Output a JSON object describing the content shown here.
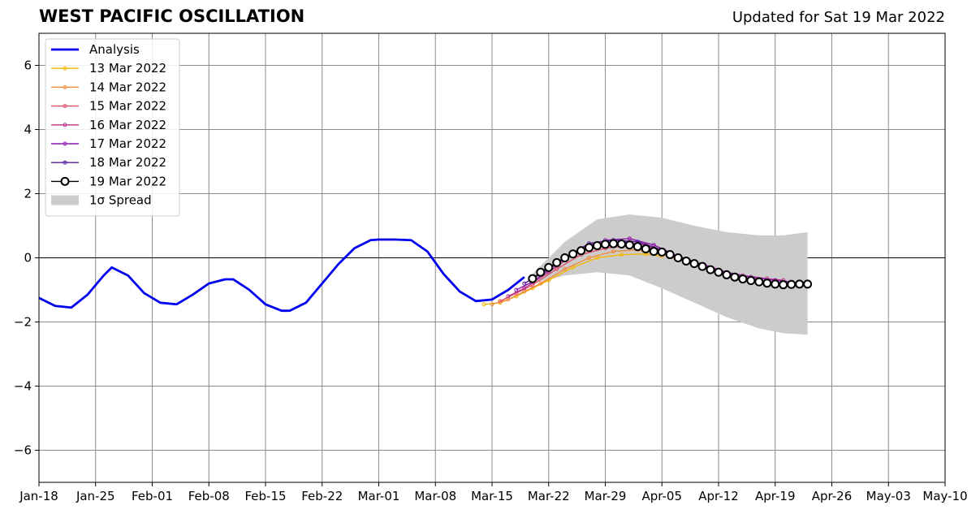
{
  "chart_data": {
    "type": "line",
    "title": "WEST PACIFIC OSCILLATION",
    "subtitle": "Updated for Sat 19 Mar 2022",
    "xlabel": "",
    "ylabel": "",
    "xlim": [
      "2022-01-18",
      "2022-05-10"
    ],
    "ylim": [
      -7,
      7
    ],
    "x_ticks": [
      "Jan-18",
      "Jan-25",
      "Feb-01",
      "Feb-08",
      "Feb-15",
      "Feb-22",
      "Mar-01",
      "Mar-08",
      "Mar-15",
      "Mar-22",
      "Mar-29",
      "Apr-05",
      "Apr-12",
      "Apr-19",
      "Apr-26",
      "May-03",
      "May-10"
    ],
    "y_ticks": [
      -6,
      -4,
      -2,
      0,
      2,
      4,
      6
    ],
    "y_tick_labels": [
      "−6",
      "−4",
      "−2",
      "0",
      "2",
      "4",
      "6"
    ],
    "grid": true,
    "legend_position": "top-left",
    "series": [
      {
        "name": "Analysis",
        "color": "#0000ee",
        "style": "line",
        "x": [
          "2022-01-18",
          "2022-01-20",
          "2022-01-22",
          "2022-01-24",
          "2022-01-26",
          "2022-01-27",
          "2022-01-29",
          "2022-01-31",
          "2022-02-02",
          "2022-02-04",
          "2022-02-06",
          "2022-02-08",
          "2022-02-10",
          "2022-02-11",
          "2022-02-13",
          "2022-02-15",
          "2022-02-17",
          "2022-02-18",
          "2022-02-20",
          "2022-02-22",
          "2022-02-24",
          "2022-02-26",
          "2022-02-28",
          "2022-03-01",
          "2022-03-03",
          "2022-03-05",
          "2022-03-07",
          "2022-03-09",
          "2022-03-11",
          "2022-03-13",
          "2022-03-15",
          "2022-03-17",
          "2022-03-19"
        ],
        "y": [
          -1.25,
          -1.5,
          -1.55,
          -1.15,
          -0.55,
          -0.3,
          -0.55,
          -1.1,
          -1.4,
          -1.45,
          -1.15,
          -0.8,
          -0.67,
          -0.67,
          -1.0,
          -1.45,
          -1.65,
          -1.65,
          -1.4,
          -0.8,
          -0.2,
          0.3,
          0.55,
          0.57,
          0.57,
          0.55,
          0.2,
          -0.5,
          -1.05,
          -1.35,
          -1.3,
          -1.0,
          -0.6
        ]
      },
      {
        "name": "13 Mar 2022",
        "color": "#f5b700",
        "style": "marker-line",
        "x": [
          "2022-03-14",
          "2022-03-16",
          "2022-03-18",
          "2022-03-20",
          "2022-03-22",
          "2022-03-25",
          "2022-03-28",
          "2022-03-31",
          "2022-04-03",
          "2022-04-05"
        ],
        "y": [
          -1.45,
          -1.4,
          -1.2,
          -0.95,
          -0.7,
          -0.3,
          0.0,
          0.1,
          0.12,
          0.05
        ]
      },
      {
        "name": "14 Mar 2022",
        "color": "#f08c3c",
        "style": "marker-line",
        "x": [
          "2022-03-15",
          "2022-03-17",
          "2022-03-19",
          "2022-03-21",
          "2022-03-24",
          "2022-03-27",
          "2022-03-30",
          "2022-04-02",
          "2022-04-05",
          "2022-04-07"
        ],
        "y": [
          -1.45,
          -1.3,
          -1.05,
          -0.8,
          -0.35,
          0.0,
          0.2,
          0.25,
          0.12,
          -0.05
        ]
      },
      {
        "name": "15 Mar 2022",
        "color": "#e0506a",
        "style": "marker-line",
        "x": [
          "2022-03-16",
          "2022-03-18",
          "2022-03-20",
          "2022-03-23",
          "2022-03-26",
          "2022-03-29",
          "2022-04-01",
          "2022-04-04",
          "2022-04-07",
          "2022-04-10",
          "2022-04-13",
          "2022-04-16",
          "2022-04-19"
        ],
        "y": [
          -1.35,
          -1.1,
          -0.85,
          -0.35,
          0.1,
          0.3,
          0.38,
          0.3,
          0.05,
          -0.2,
          -0.45,
          -0.6,
          -0.7
        ]
      },
      {
        "name": "16 Mar 2022",
        "color": "#b8348c",
        "style": "marker-line",
        "x": [
          "2022-03-17",
          "2022-03-19",
          "2022-03-22",
          "2022-03-25",
          "2022-03-28",
          "2022-03-31",
          "2022-04-03",
          "2022-04-06",
          "2022-04-09",
          "2022-04-12",
          "2022-04-15",
          "2022-04-18",
          "2022-04-20"
        ],
        "y": [
          -1.2,
          -0.95,
          -0.45,
          0.1,
          0.4,
          0.5,
          0.4,
          0.1,
          -0.15,
          -0.4,
          -0.55,
          -0.65,
          -0.7
        ]
      },
      {
        "name": "17 Mar 2022",
        "color": "#8c1aaa",
        "style": "marker-line",
        "x": [
          "2022-03-18",
          "2022-03-20",
          "2022-03-23",
          "2022-03-26",
          "2022-03-29",
          "2022-04-01",
          "2022-04-04",
          "2022-04-07",
          "2022-04-10",
          "2022-04-13",
          "2022-04-16",
          "2022-04-19",
          "2022-04-21"
        ],
        "y": [
          -1.0,
          -0.75,
          -0.2,
          0.3,
          0.55,
          0.6,
          0.4,
          0.05,
          -0.2,
          -0.45,
          -0.6,
          -0.7,
          -0.75
        ]
      },
      {
        "name": "18 Mar 2022",
        "color": "#5a1e9a",
        "style": "marker-line",
        "x": [
          "2022-03-19",
          "2022-03-21",
          "2022-03-24",
          "2022-03-27",
          "2022-03-30",
          "2022-04-02",
          "2022-04-05",
          "2022-04-08",
          "2022-04-11",
          "2022-04-14",
          "2022-04-17",
          "2022-04-20",
          "2022-04-22"
        ],
        "y": [
          -0.8,
          -0.5,
          0.0,
          0.45,
          0.55,
          0.5,
          0.25,
          -0.1,
          -0.35,
          -0.55,
          -0.7,
          -0.8,
          -0.82
        ]
      },
      {
        "name": "19 Mar 2022",
        "color": "#000000",
        "style": "open-circles",
        "x": [
          "2022-03-20",
          "2022-03-21",
          "2022-03-22",
          "2022-03-23",
          "2022-03-24",
          "2022-03-25",
          "2022-03-26",
          "2022-03-27",
          "2022-03-28",
          "2022-03-29",
          "2022-03-30",
          "2022-03-31",
          "2022-04-01",
          "2022-04-02",
          "2022-04-03",
          "2022-04-04",
          "2022-04-05",
          "2022-04-06",
          "2022-04-07",
          "2022-04-08",
          "2022-04-09",
          "2022-04-10",
          "2022-04-11",
          "2022-04-12",
          "2022-04-13",
          "2022-04-14",
          "2022-04-15",
          "2022-04-16",
          "2022-04-17",
          "2022-04-18",
          "2022-04-19",
          "2022-04-20",
          "2022-04-21",
          "2022-04-22",
          "2022-04-23"
        ],
        "y": [
          -0.65,
          -0.45,
          -0.3,
          -0.15,
          0.0,
          0.12,
          0.22,
          0.32,
          0.38,
          0.42,
          0.44,
          0.43,
          0.4,
          0.35,
          0.28,
          0.2,
          0.18,
          0.1,
          0.0,
          -0.1,
          -0.18,
          -0.27,
          -0.37,
          -0.45,
          -0.53,
          -0.6,
          -0.66,
          -0.71,
          -0.75,
          -0.79,
          -0.82,
          -0.84,
          -0.83,
          -0.82,
          -0.82
        ]
      },
      {
        "name": "1σ Spread",
        "color": "#cccccc",
        "style": "band",
        "x": [
          "2022-03-20",
          "2022-03-24",
          "2022-03-28",
          "2022-04-01",
          "2022-04-05",
          "2022-04-09",
          "2022-04-13",
          "2022-04-17",
          "2022-04-20",
          "2022-04-23"
        ],
        "upper": [
          -0.5,
          0.5,
          1.2,
          1.35,
          1.25,
          1.0,
          0.8,
          0.7,
          0.7,
          0.8
        ],
        "lower": [
          -0.8,
          -0.55,
          -0.45,
          -0.55,
          -0.95,
          -1.4,
          -1.85,
          -2.2,
          -2.35,
          -2.4
        ]
      }
    ]
  }
}
